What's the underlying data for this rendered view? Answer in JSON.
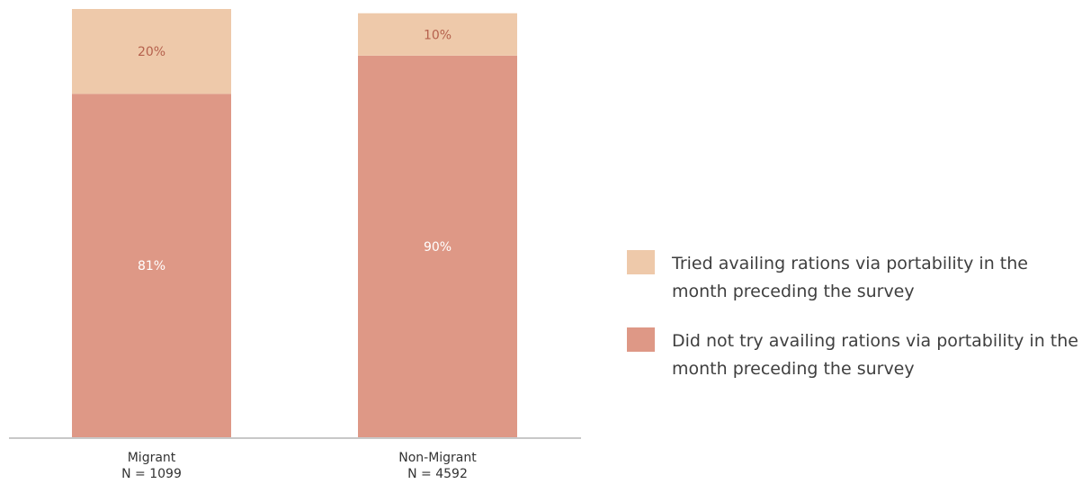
{
  "chart_data": {
    "type": "bar",
    "stacked": true,
    "categories": [
      "Migrant",
      "Non-Migrant"
    ],
    "category_notes": [
      "N = 1099",
      "N = 4592"
    ],
    "series": [
      {
        "name": "Did not try availing rations via portability in the month preceding the survey",
        "values": [
          81,
          90
        ],
        "labels": [
          "81%",
          "90%"
        ],
        "color": "#de9886"
      },
      {
        "name": "Tried availing rations via portability in the month preceding the survey",
        "values": [
          20,
          10
        ],
        "labels": [
          "20%",
          "10%"
        ],
        "color": "#eec9aa"
      }
    ],
    "ylim": [
      0,
      101
    ],
    "grid": false,
    "legend_position": "right"
  },
  "legend": [
    {
      "label": "Tried availing rations via portability in the month preceding the survey",
      "color": "#eec9aa"
    },
    {
      "label": "Did not try availing rations via portability in the month preceding the survey",
      "color": "#de9886"
    }
  ]
}
